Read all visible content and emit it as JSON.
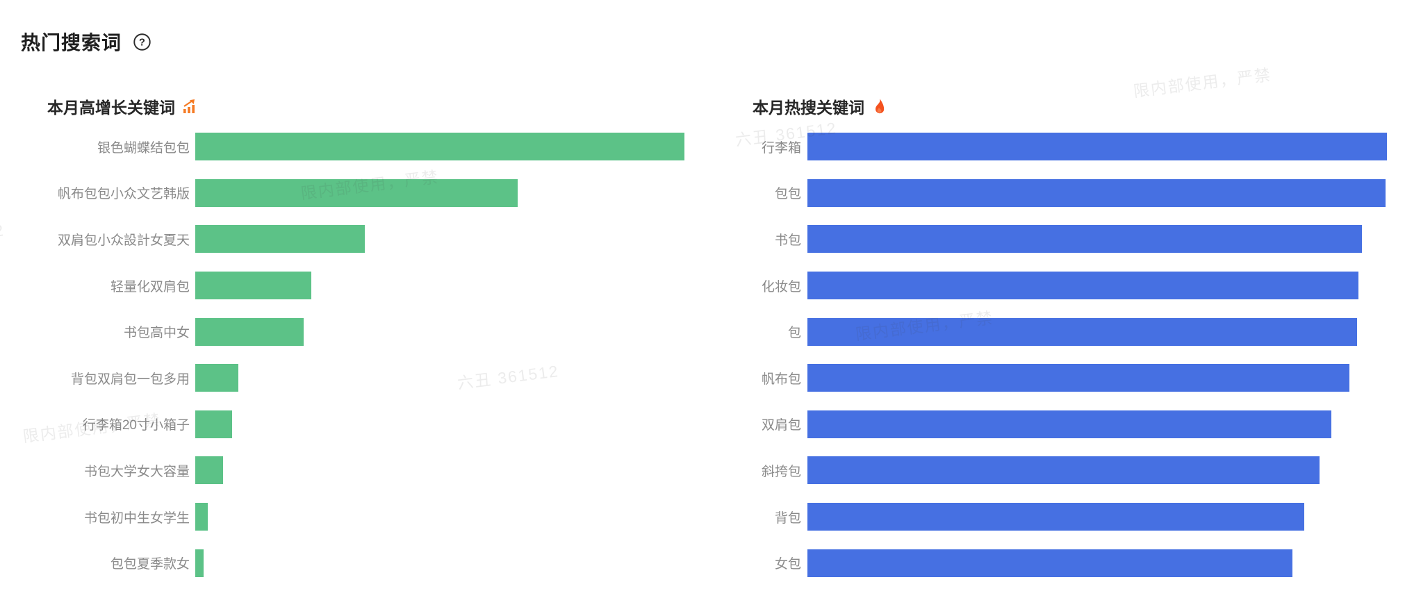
{
  "page": {
    "title": "热门搜索词",
    "help_icon": "question-circle-icon"
  },
  "colors": {
    "growth_bar": "#5cc287",
    "hot_bar": "#4670e2",
    "title_text": "#1f1f1f",
    "header_text": "#262626",
    "label_text": "#8a8a8a",
    "trend_icon_orange": "#f57a23",
    "fire_icon_red": "#f4511e"
  },
  "watermark": {
    "usage_text": "限内部使用，严禁",
    "id_text": "六丑 361512"
  },
  "chart_data": [
    {
      "type": "bar",
      "orientation": "horizontal",
      "title": "本月高增长关键词",
      "title_icon": "trending-chart-icon",
      "bar_color": "#5cc287",
      "legend": "none",
      "axis_values_visible": false,
      "categories": [
        "银色蝴蝶结包包",
        "帆布包包小众文艺韩版",
        "双肩包小众設計女夏天",
        "轻量化双肩包",
        "书包高中女",
        "背包双肩包一包多用",
        "行李箱20寸小箱子",
        "书包大学女大容量",
        "书包初中生女学生",
        "包包夏季款女"
      ],
      "values_pct_of_max": [
        100,
        65.9,
        34.7,
        23.7,
        22.2,
        8.8,
        7.5,
        5.7,
        2.6,
        1.7
      ]
    },
    {
      "type": "bar",
      "orientation": "horizontal",
      "title": "本月热搜关键词",
      "title_icon": "fire-icon",
      "bar_color": "#4670e2",
      "legend": "none",
      "axis_values_visible": false,
      "categories": [
        "行李箱",
        "包包",
        "书包",
        "化妆包",
        "包",
        "帆布包",
        "双肩包",
        "斜挎包",
        "背包",
        "女包"
      ],
      "values_pct_of_max": [
        100,
        99.8,
        95.7,
        95.1,
        94.9,
        93.5,
        90.4,
        88.4,
        85.7,
        83.7
      ]
    }
  ]
}
